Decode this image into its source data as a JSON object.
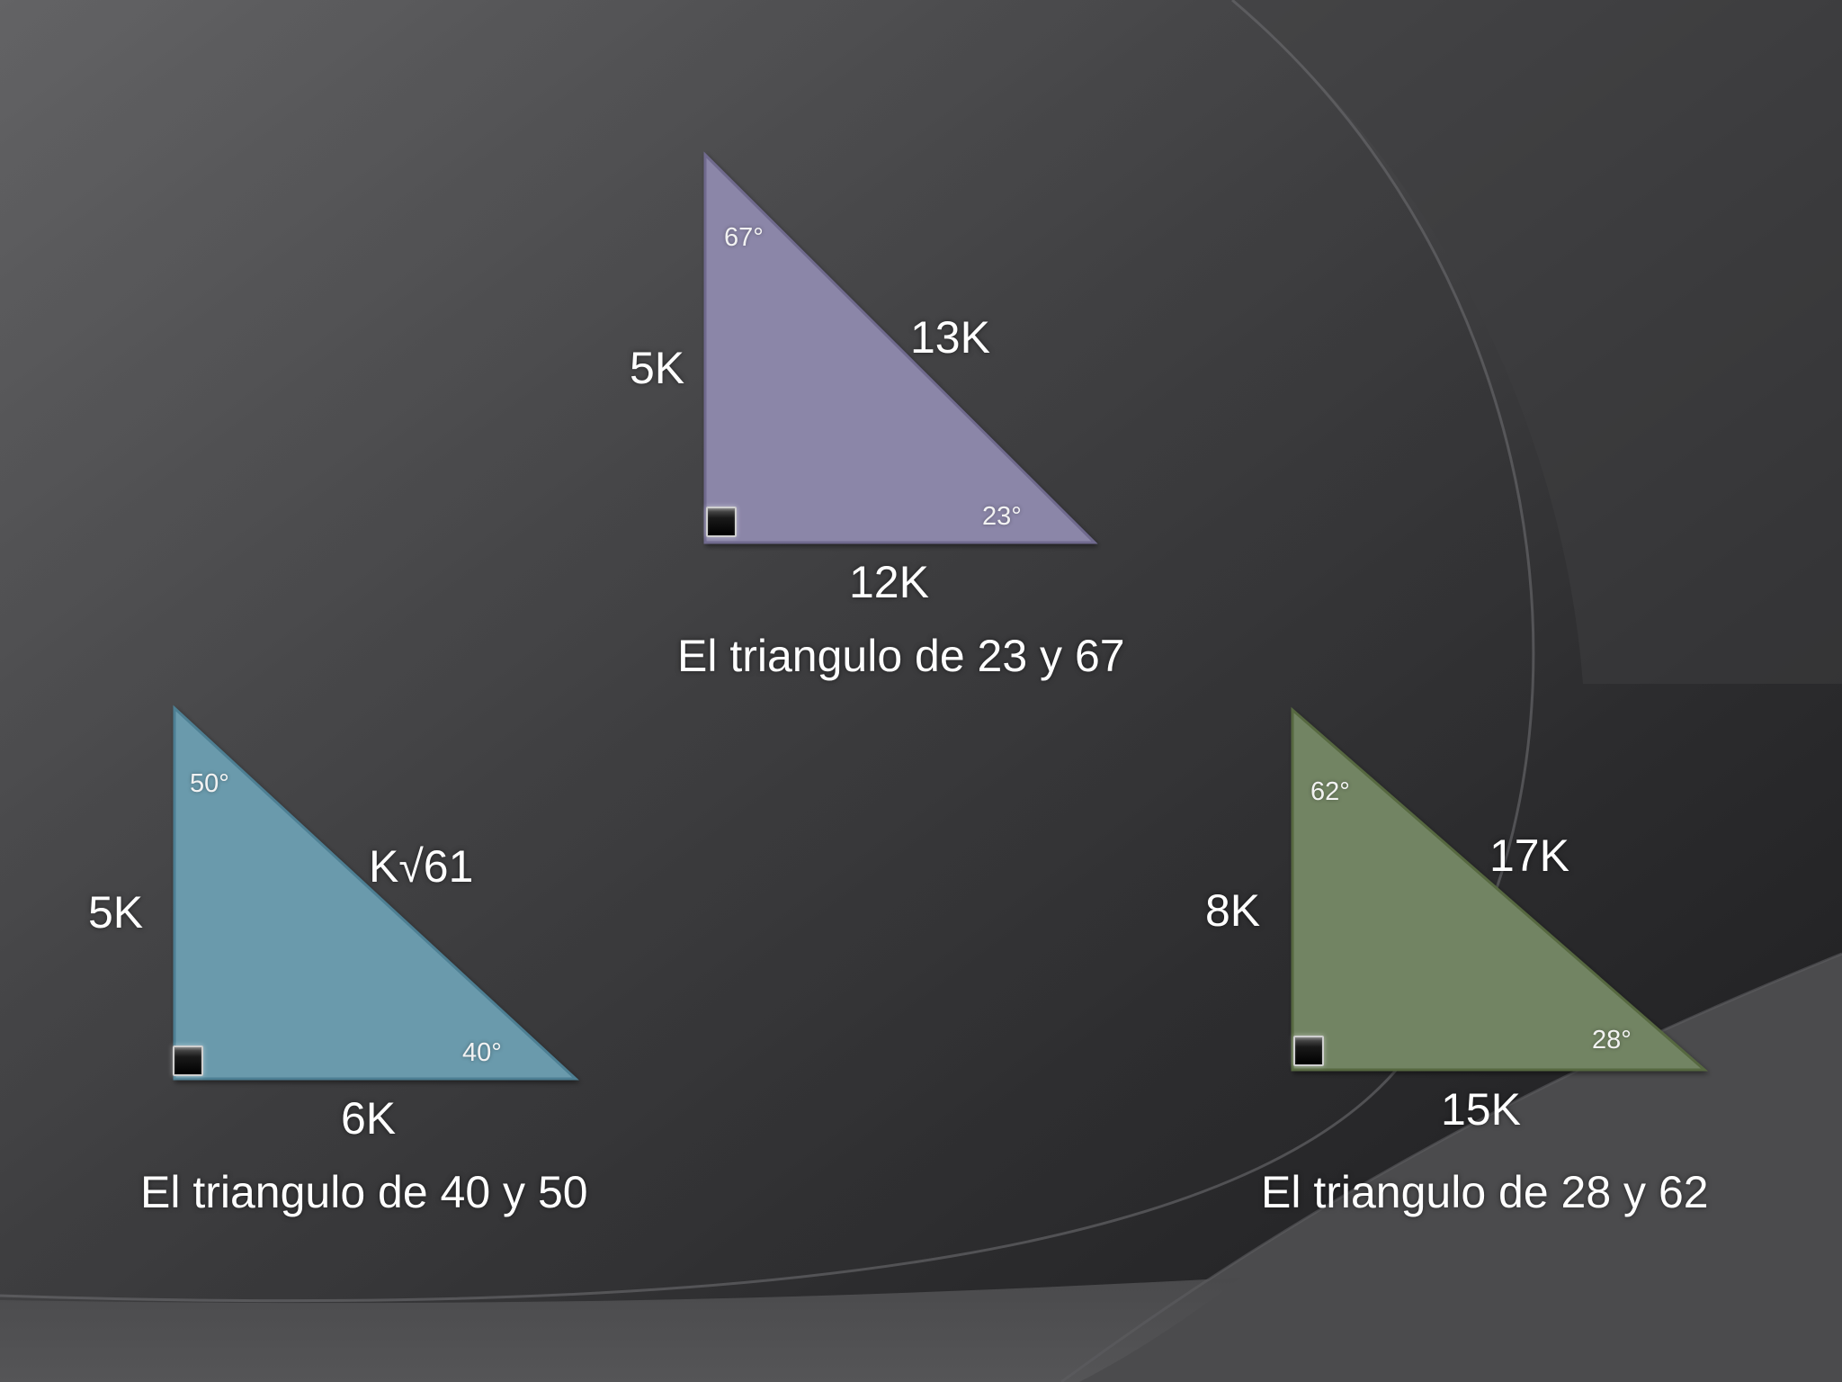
{
  "colors": {
    "triangle_top": "#8b86a8",
    "triangle_left": "#6a9aac",
    "triangle_right": "#728463",
    "background_dark": "#1f1f21",
    "background_light": "#6a6a6c"
  },
  "icons": {
    "right_angle": "right-angle-square-icon"
  },
  "triangles": {
    "top": {
      "vertical_side": "5K",
      "hypotenuse": "13K",
      "base": "12K",
      "angle_top": "67°",
      "angle_bottom": "23°",
      "caption": "El triangulo de 23 y 67"
    },
    "left": {
      "vertical_side": "5K",
      "hypotenuse": "K√61",
      "base": "6K",
      "angle_top": "50°",
      "angle_bottom": "40°",
      "caption": "El triangulo de 40 y 50"
    },
    "right": {
      "vertical_side": "8K",
      "hypotenuse": "17K",
      "base": "15K",
      "angle_top": "62°",
      "angle_bottom": "28°",
      "caption": "El triangulo de 28 y 62"
    }
  }
}
